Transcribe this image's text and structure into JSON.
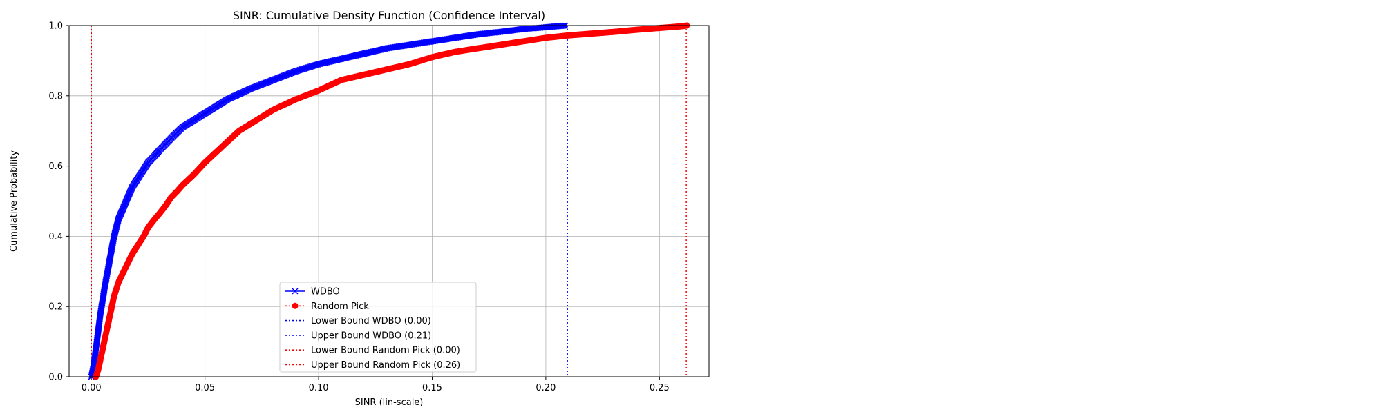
{
  "chart_data": {
    "type": "line",
    "title": "SINR: Cumulative Density Function (Confidence Interval)",
    "xlabel": "SINR (lin-scale)",
    "ylabel": "Cumulative Probability",
    "xlim": [
      -0.0098,
      0.2718
    ],
    "ylim": [
      0,
      1
    ],
    "xticks": [
      0.0,
      0.05,
      0.1,
      0.15,
      0.2,
      0.25
    ],
    "xtick_labels": [
      "0.00",
      "0.05",
      "0.10",
      "0.15",
      "0.20",
      "0.25"
    ],
    "yticks": [
      0,
      0.2,
      0.4,
      0.6,
      0.8,
      1.0
    ],
    "ytick_labels": [
      "0.0",
      "0.2",
      "0.4",
      "0.6",
      "0.8",
      "1.0"
    ],
    "grid": true,
    "legend_position": "lower-center",
    "series": [
      {
        "name": "WDBO",
        "color": "#0000ff",
        "marker": "x",
        "linestyle": "solid",
        "x": [
          0.0,
          0.001,
          0.002,
          0.003,
          0.004,
          0.005,
          0.006,
          0.008,
          0.01,
          0.012,
          0.014,
          0.016,
          0.018,
          0.02,
          0.022,
          0.025,
          0.028,
          0.03,
          0.033,
          0.036,
          0.04,
          0.045,
          0.05,
          0.055,
          0.06,
          0.065,
          0.07,
          0.08,
          0.09,
          0.1,
          0.11,
          0.12,
          0.13,
          0.14,
          0.15,
          0.16,
          0.17,
          0.18,
          0.19,
          0.2,
          0.205,
          0.209
        ],
        "y": [
          0.0,
          0.03,
          0.08,
          0.13,
          0.18,
          0.22,
          0.26,
          0.33,
          0.4,
          0.45,
          0.48,
          0.51,
          0.54,
          0.56,
          0.58,
          0.61,
          0.63,
          0.645,
          0.665,
          0.685,
          0.71,
          0.73,
          0.75,
          0.77,
          0.79,
          0.805,
          0.82,
          0.845,
          0.87,
          0.89,
          0.905,
          0.92,
          0.935,
          0.945,
          0.955,
          0.965,
          0.975,
          0.982,
          0.99,
          0.995,
          0.998,
          1.0
        ]
      },
      {
        "name": "Random Pick",
        "color": "#ff0000",
        "marker": "o",
        "linestyle": "dotted",
        "x": [
          0.002,
          0.003,
          0.004,
          0.005,
          0.006,
          0.008,
          0.01,
          0.012,
          0.015,
          0.018,
          0.02,
          0.023,
          0.025,
          0.028,
          0.03,
          0.033,
          0.035,
          0.038,
          0.04,
          0.045,
          0.05,
          0.055,
          0.06,
          0.065,
          0.07,
          0.075,
          0.08,
          0.09,
          0.1,
          0.11,
          0.12,
          0.13,
          0.14,
          0.15,
          0.16,
          0.17,
          0.18,
          0.19,
          0.2,
          0.21,
          0.22,
          0.23,
          0.24,
          0.25,
          0.26,
          0.262
        ],
        "y": [
          0.0,
          0.02,
          0.05,
          0.08,
          0.11,
          0.17,
          0.23,
          0.27,
          0.31,
          0.35,
          0.37,
          0.4,
          0.425,
          0.45,
          0.465,
          0.49,
          0.51,
          0.53,
          0.545,
          0.575,
          0.61,
          0.64,
          0.67,
          0.7,
          0.72,
          0.74,
          0.76,
          0.79,
          0.815,
          0.845,
          0.86,
          0.875,
          0.89,
          0.91,
          0.925,
          0.935,
          0.945,
          0.955,
          0.965,
          0.972,
          0.977,
          0.982,
          0.988,
          0.993,
          0.998,
          1.0
        ]
      },
      {
        "name": "Lower Bound WDBO (0.00)",
        "color": "#0000ff",
        "linestyle": "dotted",
        "vline_x": 0.0
      },
      {
        "name": "Upper Bound WDBO (0.21)",
        "color": "#0000ff",
        "linestyle": "dotted",
        "vline_x": 0.2095
      },
      {
        "name": "Lower Bound Random Pick (0.00)",
        "color": "#ff0000",
        "linestyle": "dotted",
        "vline_x": 0.0
      },
      {
        "name": "Upper Bound Random Pick (0.26)",
        "color": "#ff0000",
        "linestyle": "dotted",
        "vline_x": 0.2618
      }
    ]
  }
}
